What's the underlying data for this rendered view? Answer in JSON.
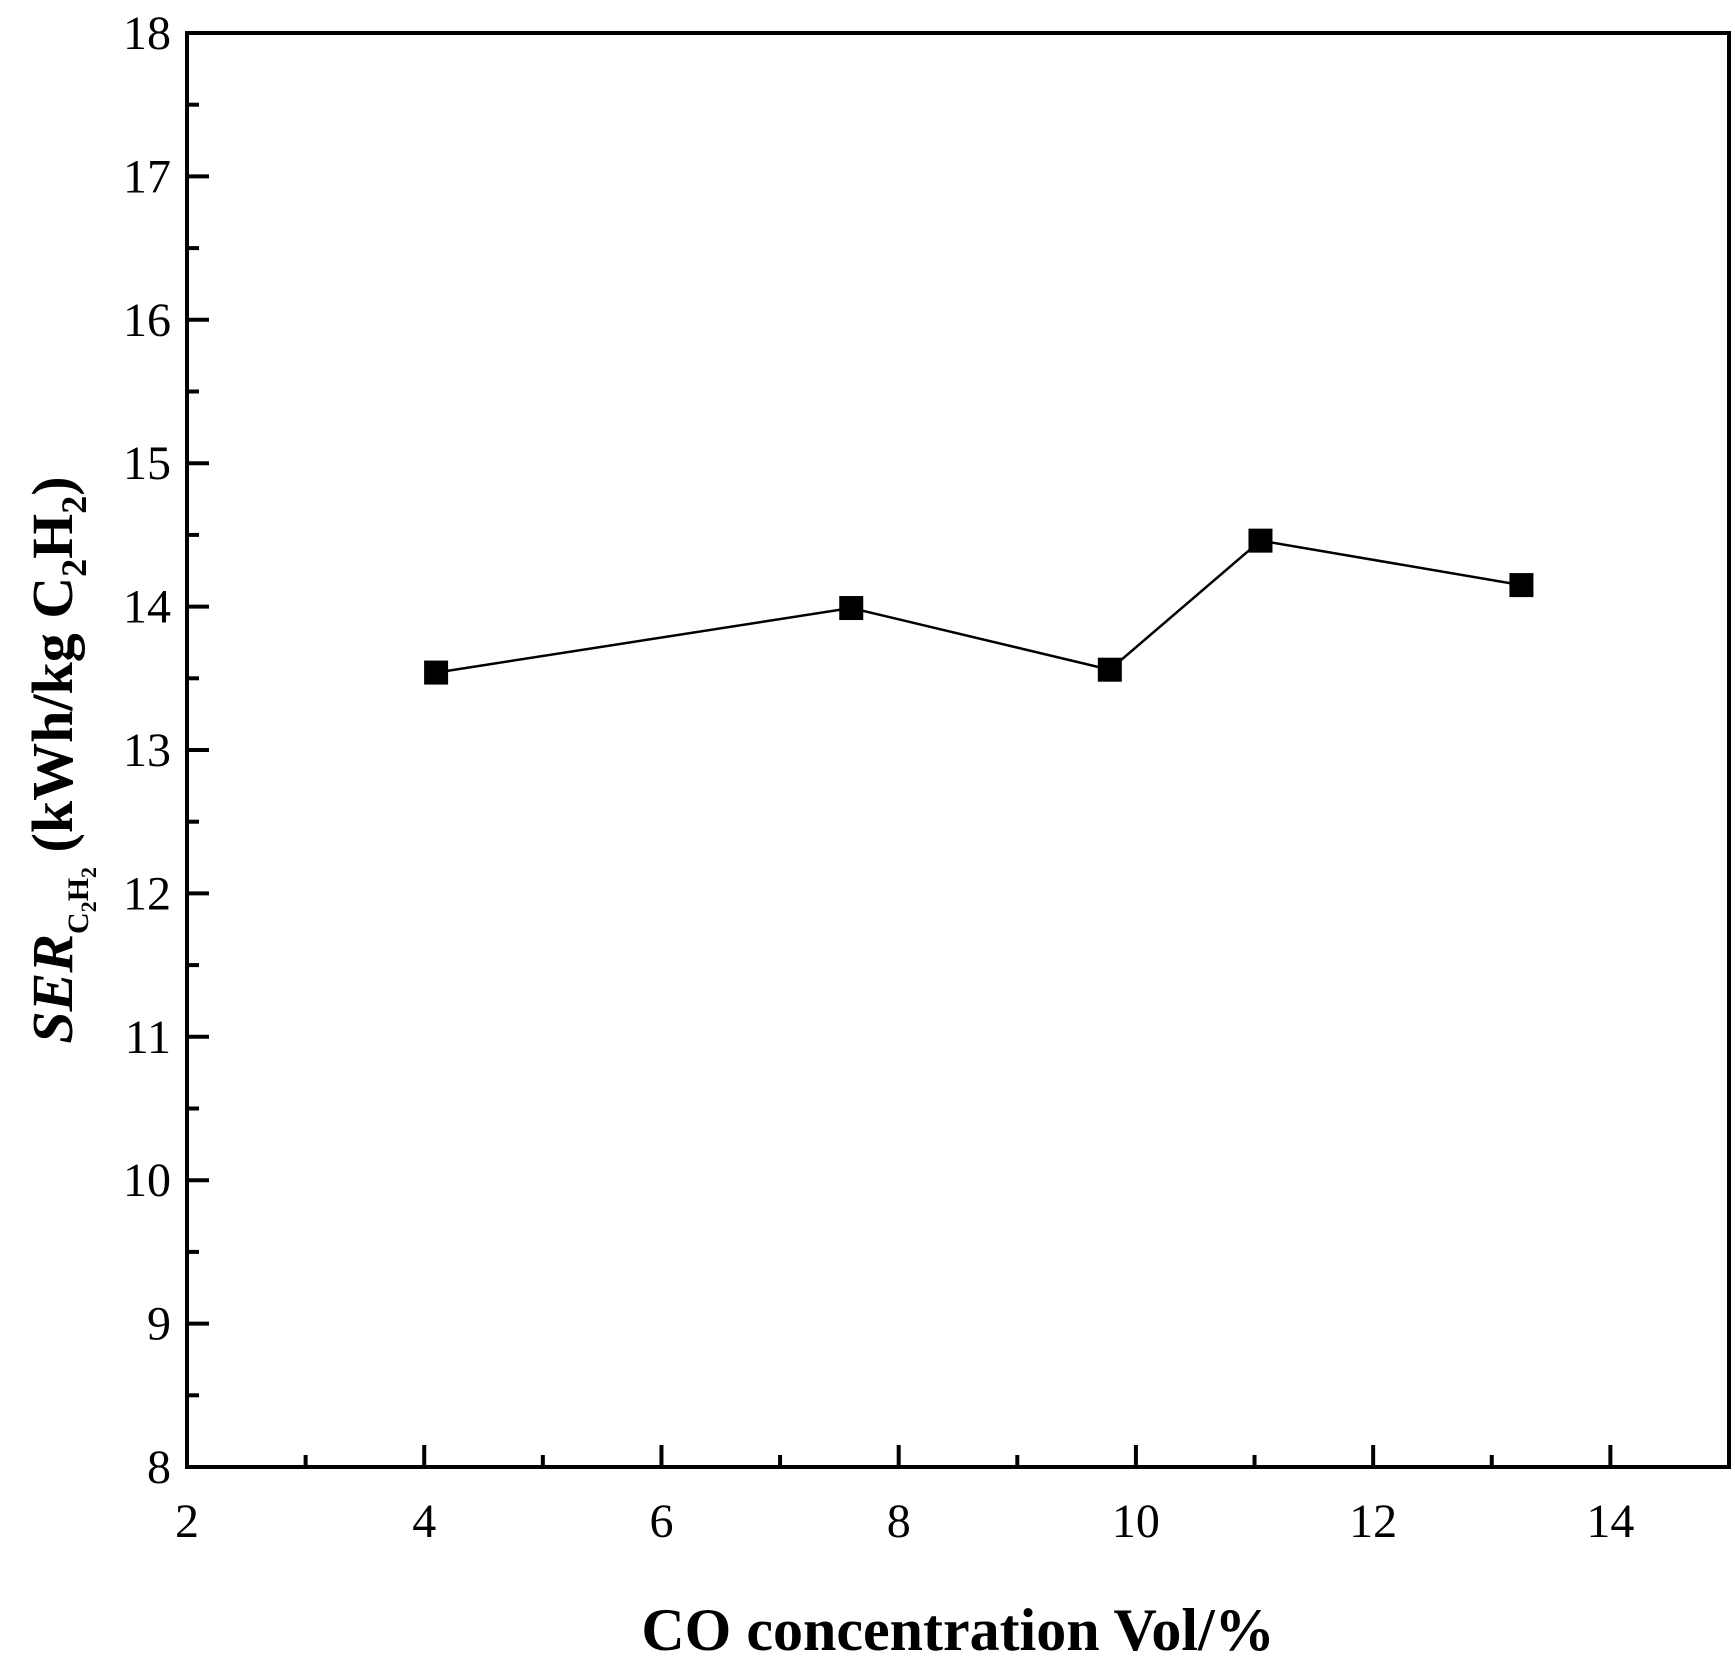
{
  "chart_data": {
    "type": "line",
    "xlabel": "CO concentration Vol/%",
    "ylabel": {
      "prefix": "SER",
      "sub_c": "C",
      "sub_c_n": "2",
      "sub_h": "H",
      "sub_h_n": "2",
      "unit_open": " (kWh/kg C",
      "unit_n1": "2",
      "unit_mid": "H",
      "unit_n2": "2",
      "unit_close": ")"
    },
    "xlim": [
      2,
      15
    ],
    "ylim": [
      8,
      18
    ],
    "x_major_ticks": [
      2,
      4,
      6,
      8,
      10,
      12,
      14
    ],
    "x_minor_ticks": [
      3,
      5,
      7,
      9,
      11,
      13
    ],
    "y_major_ticks": [
      8,
      9,
      10,
      11,
      12,
      13,
      14,
      15,
      16,
      17,
      18
    ],
    "y_minor_ticks": [
      8.5,
      9.5,
      10.5,
      11.5,
      12.5,
      13.5,
      14.5,
      15.5,
      16.5,
      17.5
    ],
    "grid": false,
    "series": [
      {
        "marker": "square",
        "color": "#000000",
        "x": [
          4.1,
          7.6,
          9.78,
          11.05,
          13.25
        ],
        "y": [
          13.54,
          13.99,
          13.56,
          14.46,
          14.15
        ]
      }
    ]
  }
}
